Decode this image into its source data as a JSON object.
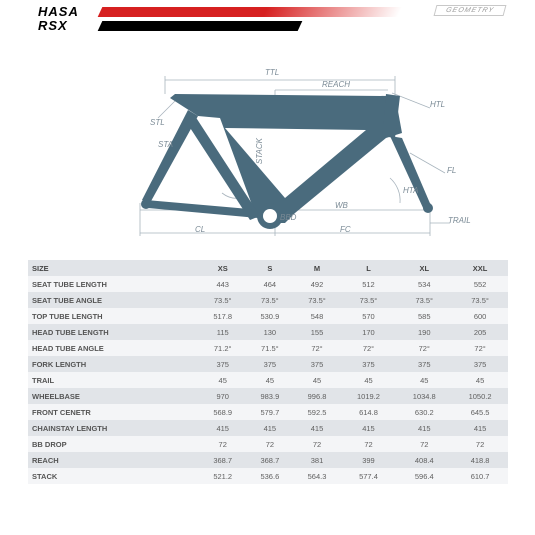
{
  "header": {
    "brand_top": "HASA",
    "brand_bottom": "RSX",
    "geometry_label": "GEOMETRY"
  },
  "diagram": {
    "frame_color": "#4a6b7d",
    "guide_color": "#a8b4bd",
    "label_color": "#7a8a95",
    "labels": {
      "ttl": "TTL",
      "reach": "REACH",
      "stack": "STACK",
      "htl": "HTL",
      "fl": "FL",
      "hta": "HTA",
      "trail": "TRAIL",
      "wb": "WB",
      "bbd": "BBD",
      "fc": "FC",
      "cl": "CL",
      "stl": "STL",
      "sta": "STA"
    }
  },
  "table": {
    "size_header": "SIZE",
    "size_columns": [
      "XS",
      "S",
      "M",
      "L",
      "XL",
      "XXL"
    ],
    "rows": [
      {
        "label": "SEAT TUBE LENGTH",
        "values": [
          "443",
          "464",
          "492",
          "512",
          "534",
          "552"
        ]
      },
      {
        "label": "SEAT TUBE ANGLE",
        "values": [
          "73.5°",
          "73.5°",
          "73.5°",
          "73.5°",
          "73.5°",
          "73.5°"
        ]
      },
      {
        "label": "TOP TUBE LENGTH",
        "values": [
          "517.8",
          "530.9",
          "548",
          "570",
          "585",
          "600"
        ]
      },
      {
        "label": "HEAD TUBE LENGTH",
        "values": [
          "115",
          "130",
          "155",
          "170",
          "190",
          "205"
        ]
      },
      {
        "label": "HEAD TUBE ANGLE",
        "values": [
          "71.2°",
          "71.5°",
          "72°",
          "72°",
          "72°",
          "72°"
        ]
      },
      {
        "label": "FORK LENGTH",
        "values": [
          "375",
          "375",
          "375",
          "375",
          "375",
          "375"
        ]
      },
      {
        "label": "TRAIL",
        "values": [
          "45",
          "45",
          "45",
          "45",
          "45",
          "45"
        ]
      },
      {
        "label": "WHEELBASE",
        "values": [
          "970",
          "983.9",
          "996.8",
          "1019.2",
          "1034.8",
          "1050.2"
        ]
      },
      {
        "label": "FRONT CENETR",
        "values": [
          "568.9",
          "579.7",
          "592.5",
          "614.8",
          "630.2",
          "645.5"
        ]
      },
      {
        "label": "CHAINSTAY LENGTH",
        "values": [
          "415",
          "415",
          "415",
          "415",
          "415",
          "415"
        ]
      },
      {
        "label": "BB DROP",
        "values": [
          "72",
          "72",
          "72",
          "72",
          "72",
          "72"
        ]
      },
      {
        "label": "REACH",
        "values": [
          "368.7",
          "368.7",
          "381",
          "399",
          "408.4",
          "418.8"
        ]
      },
      {
        "label": "STACK",
        "values": [
          "521.2",
          "536.6",
          "564.3",
          "577.4",
          "596.4",
          "610.7"
        ]
      }
    ],
    "alt_colors": {
      "dark": "#e1e4e8",
      "light": "#f4f5f7"
    }
  }
}
